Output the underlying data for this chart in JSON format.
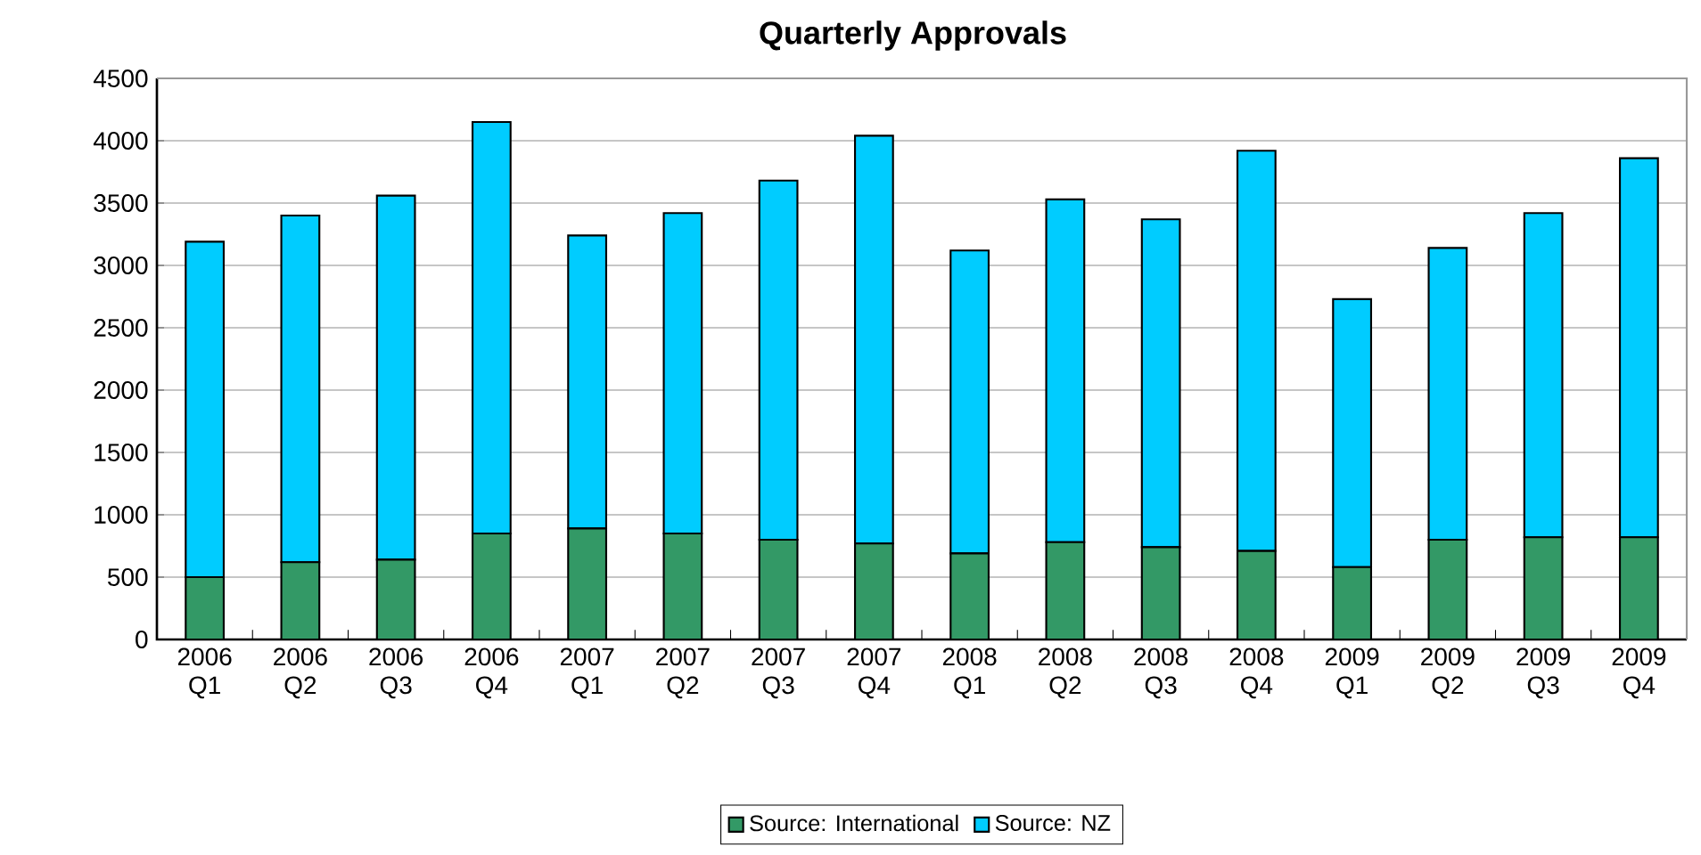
{
  "chart_data": {
    "type": "bar",
    "title": "Quarterly Approvals",
    "stacked": true,
    "grid": "y",
    "legend": "bottom",
    "categories": [
      "2006 Q1",
      "2006 Q2",
      "2006 Q3",
      "2006 Q4",
      "2007 Q1",
      "2007 Q2",
      "2007 Q3",
      "2007 Q4",
      "2008 Q1",
      "2008 Q2",
      "2008 Q3",
      "2008 Q4",
      "2009 Q1",
      "2009 Q2",
      "2009 Q3",
      "2009 Q4"
    ],
    "series": [
      {
        "name": "Source: International",
        "color": "#339966",
        "values": [
          500,
          620,
          640,
          850,
          890,
          850,
          800,
          770,
          690,
          780,
          740,
          710,
          580,
          800,
          820,
          820
        ]
      },
      {
        "name": "Source: NZ",
        "color": "#00ccff",
        "values": [
          2690,
          2780,
          2920,
          3300,
          2350,
          2570,
          2880,
          3270,
          2430,
          2750,
          2630,
          3210,
          2150,
          2340,
          2600,
          3040
        ]
      }
    ],
    "ylim": [
      0,
      4500
    ],
    "yticks": [
      0,
      500,
      1000,
      1500,
      2000,
      2500,
      3000,
      3500,
      4000,
      4500
    ]
  }
}
